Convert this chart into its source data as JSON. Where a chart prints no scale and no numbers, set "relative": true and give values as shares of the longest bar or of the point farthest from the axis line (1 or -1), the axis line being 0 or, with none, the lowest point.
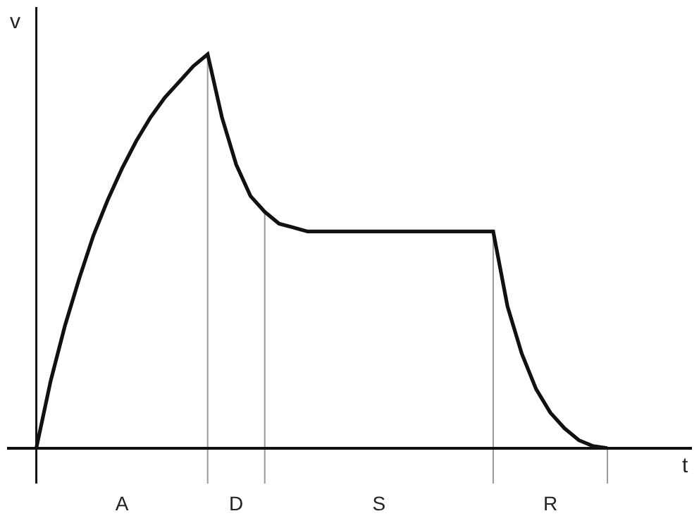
{
  "chart_data": {
    "type": "line",
    "relative": true,
    "xlabel": "t",
    "ylabel": "v",
    "categories": [
      null,
      null,
      null,
      null,
      null,
      null,
      "A",
      null,
      null,
      null,
      null,
      null,
      null,
      null,
      "D",
      null,
      null,
      null,
      null,
      null,
      null,
      null,
      null,
      null,
      "S",
      null,
      null,
      null,
      null,
      null,
      null,
      null,
      null,
      null,
      null,
      null,
      "R",
      null,
      null,
      null,
      null
    ],
    "series": [
      {
        "color": "#111111",
        "values": [
          0,
          0.17,
          0.31,
          0.43,
          0.54,
          0.63,
          0.71,
          0.78,
          0.84,
          0.89,
          0.93,
          0.97,
          1.0,
          0.84,
          0.72,
          0.64,
          0.6,
          0.57,
          0.56,
          0.55,
          0.55,
          0.55,
          0.55,
          0.55,
          0.55,
          0.55,
          0.55,
          0.55,
          0.55,
          0.55,
          0.55,
          0.55,
          0.55,
          0.36,
          0.24,
          0.15,
          0.09,
          0.05,
          0.02,
          0.005,
          0
        ]
      }
    ],
    "grid": false,
    "legend": false,
    "marker": "none",
    "line_style": "solid"
  }
}
